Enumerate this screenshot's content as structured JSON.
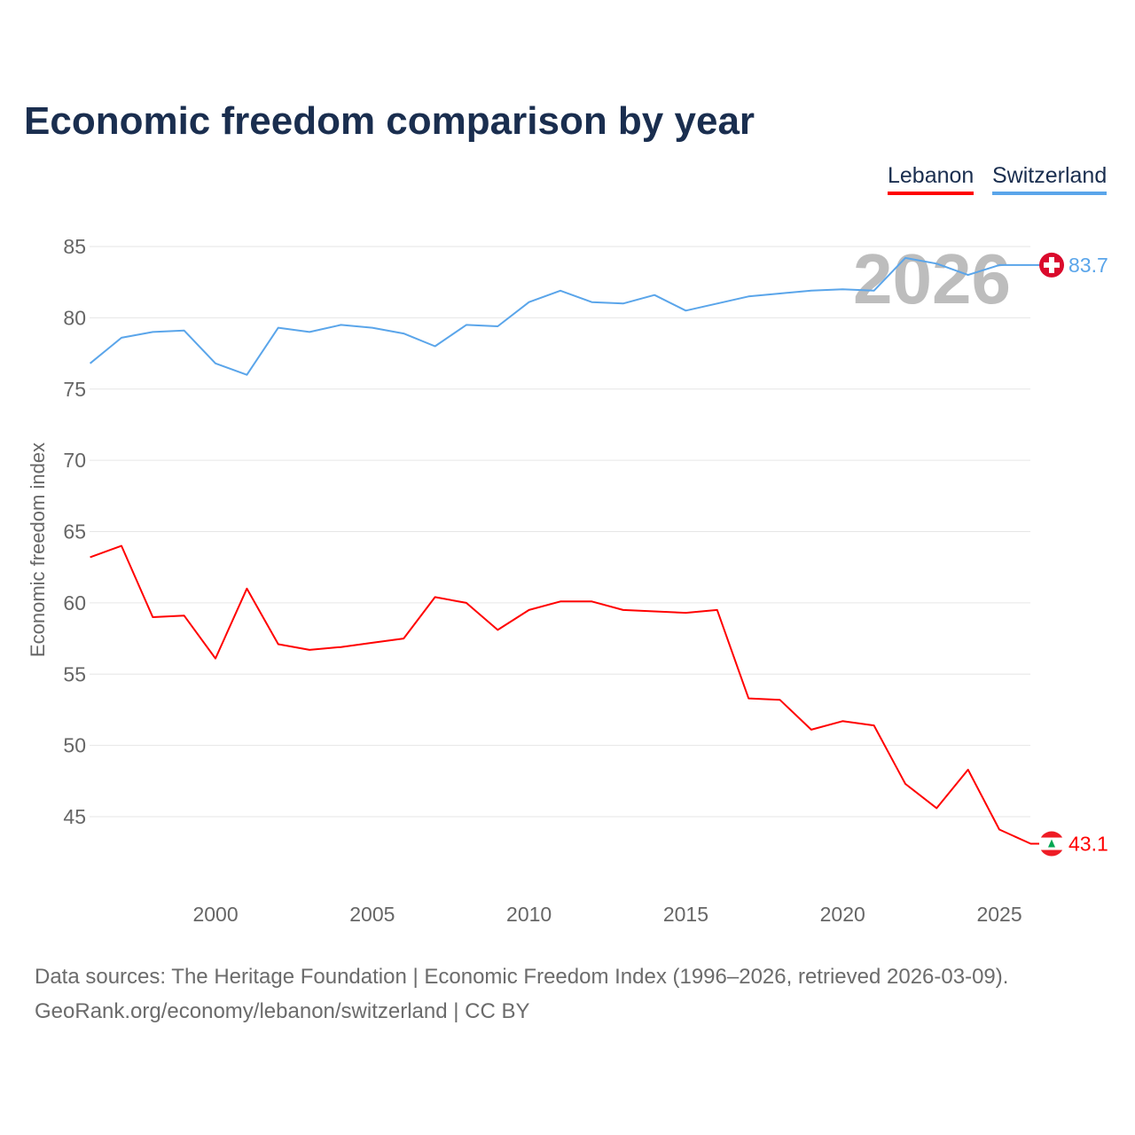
{
  "chart_data": {
    "type": "line",
    "title": "Economic freedom comparison by year",
    "xlabel": "",
    "ylabel": "Economic freedom index",
    "xlim": [
      1996,
      2026
    ],
    "ylim": [
      40,
      85
    ],
    "x_ticks": [
      2000,
      2005,
      2010,
      2015,
      2020,
      2025
    ],
    "y_ticks": [
      45,
      50,
      55,
      60,
      65,
      70,
      75,
      80,
      85
    ],
    "grid": true,
    "legend_position": "top-right",
    "watermark_year": "2026",
    "x": [
      1996,
      1997,
      1998,
      1999,
      2000,
      2001,
      2002,
      2003,
      2004,
      2005,
      2006,
      2007,
      2008,
      2009,
      2010,
      2011,
      2012,
      2013,
      2014,
      2015,
      2016,
      2017,
      2018,
      2019,
      2020,
      2021,
      2022,
      2023,
      2024,
      2025,
      2026
    ],
    "series": [
      {
        "name": "Lebanon",
        "color": "#ff0000",
        "end_label": "43.1",
        "values": [
          63.2,
          64.0,
          59.0,
          59.1,
          56.1,
          61.0,
          57.1,
          56.7,
          56.9,
          57.2,
          57.5,
          60.4,
          60.0,
          58.1,
          59.5,
          60.1,
          60.1,
          59.5,
          59.4,
          59.3,
          59.5,
          53.3,
          53.2,
          51.1,
          51.7,
          51.4,
          47.3,
          45.6,
          48.3,
          44.1,
          43.1
        ]
      },
      {
        "name": "Switzerland",
        "color": "#5aa5ea",
        "end_label": "83.7",
        "values": [
          76.8,
          78.6,
          79.0,
          79.1,
          76.8,
          76.0,
          79.3,
          79.0,
          79.5,
          79.3,
          78.9,
          78.0,
          79.5,
          79.4,
          81.1,
          81.9,
          81.1,
          81.0,
          81.6,
          80.5,
          81.0,
          81.5,
          81.7,
          81.9,
          82.0,
          81.9,
          84.2,
          83.8,
          83.0,
          83.7,
          83.7
        ]
      }
    ]
  },
  "footer": {
    "sources": "Data sources: The Heritage Foundation | Economic Freedom Index (1996–2026, retrieved 2026-03-09).",
    "credit": "GeoRank.org/economy/lebanon/switzerland | CC BY"
  }
}
